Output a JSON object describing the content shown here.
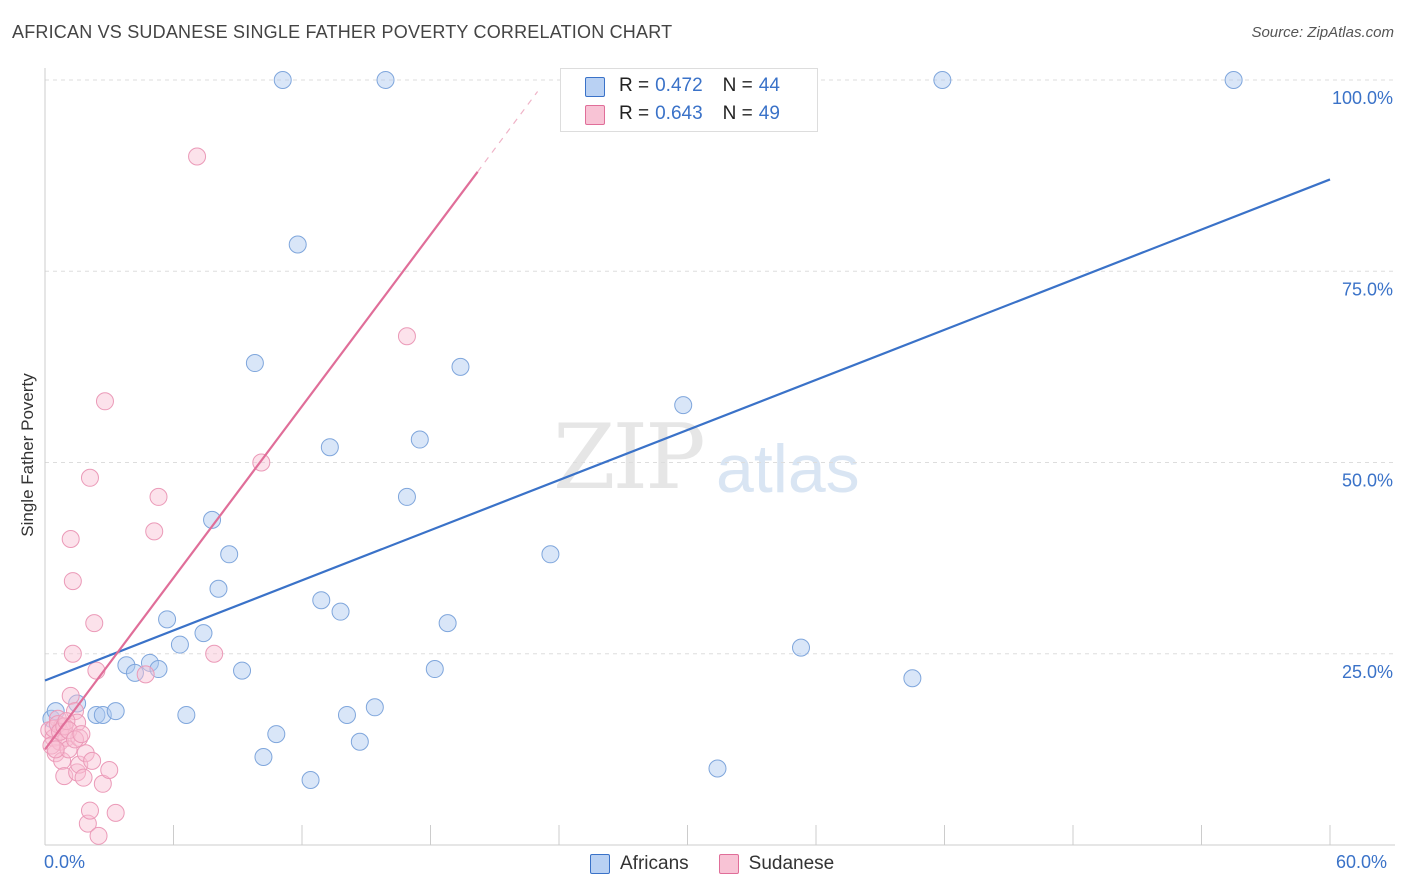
{
  "title": "AFRICAN VS SUDANESE SINGLE FATHER POVERTY CORRELATION CHART",
  "source": "Source: ZipAtlas.com",
  "watermark": {
    "main": "ZIP",
    "sub": "atlas"
  },
  "colors": {
    "blue": "#3a72c8",
    "blue_fill": "#b9d1f3",
    "pink": "#e06e99",
    "pink_fill": "#f8c3d5"
  },
  "stats": [
    {
      "r_label": "R = ",
      "r_value": "0.472",
      "n_label": "N = ",
      "n_value": "44"
    },
    {
      "r_label": "R = ",
      "r_value": "0.643",
      "n_label": "N = ",
      "n_value": "49"
    }
  ],
  "legend": [
    "Africans",
    "Sudanese"
  ],
  "chart_data": {
    "type": "scatter",
    "title": "AFRICAN VS SUDANESE SINGLE FATHER POVERTY CORRELATION CHART",
    "xlabel": "",
    "ylabel": "Single Father Poverty",
    "xlim": [
      0,
      60
    ],
    "ylim": [
      0,
      100
    ],
    "x_tick_labels": [
      "0.0%",
      "60.0%"
    ],
    "y_ticks": [
      25,
      50,
      75,
      100
    ],
    "y_tick_labels": [
      "25.0%",
      "50.0%",
      "75.0%",
      "100.0%"
    ],
    "grid": true,
    "series": [
      {
        "name": "Africans",
        "points": [
          [
            0.3,
            16.5
          ],
          [
            0.5,
            17.5
          ],
          [
            1.5,
            18.5
          ],
          [
            2.4,
            17.0
          ],
          [
            2.7,
            17.0
          ],
          [
            3.3,
            17.5
          ],
          [
            3.8,
            23.5
          ],
          [
            4.2,
            22.5
          ],
          [
            4.9,
            23.8
          ],
          [
            5.3,
            23.0
          ],
          [
            5.7,
            29.5
          ],
          [
            6.3,
            26.2
          ],
          [
            6.6,
            17.0
          ],
          [
            7.4,
            27.7
          ],
          [
            7.8,
            42.5
          ],
          [
            8.6,
            38.0
          ],
          [
            8.1,
            33.5
          ],
          [
            9.2,
            22.8
          ],
          [
            9.8,
            63.0
          ],
          [
            10.2,
            11.5
          ],
          [
            10.8,
            14.5
          ],
          [
            11.1,
            100.0
          ],
          [
            11.8,
            78.5
          ],
          [
            12.4,
            8.5
          ],
          [
            12.9,
            32.0
          ],
          [
            13.3,
            52.0
          ],
          [
            13.8,
            30.5
          ],
          [
            14.1,
            17.0
          ],
          [
            14.7,
            13.5
          ],
          [
            15.4,
            18.0
          ],
          [
            15.9,
            100.0
          ],
          [
            16.9,
            45.5
          ],
          [
            17.5,
            53.0
          ],
          [
            18.2,
            23.0
          ],
          [
            18.8,
            29.0
          ],
          [
            19.4,
            62.5
          ],
          [
            23.6,
            38.0
          ],
          [
            26.1,
            100.0
          ],
          [
            31.4,
            10.0
          ],
          [
            35.3,
            25.8
          ],
          [
            40.5,
            21.8
          ],
          [
            41.9,
            100.0
          ],
          [
            55.5,
            100.0
          ],
          [
            29.8,
            57.5
          ]
        ],
        "trend": {
          "x": [
            0,
            60
          ],
          "y": [
            21.5,
            87.0
          ]
        }
      },
      {
        "name": "Sudanese",
        "points": [
          [
            0.2,
            15.0
          ],
          [
            0.4,
            14.0
          ],
          [
            0.5,
            12.0
          ],
          [
            0.6,
            16.5
          ],
          [
            0.7,
            13.5
          ],
          [
            0.8,
            11.0
          ],
          [
            0.8,
            15.5
          ],
          [
            0.9,
            9.0
          ],
          [
            1.0,
            14.0
          ],
          [
            1.1,
            12.5
          ],
          [
            1.2,
            19.5
          ],
          [
            1.2,
            40.0
          ],
          [
            1.3,
            25.0
          ],
          [
            1.3,
            34.5
          ],
          [
            1.4,
            17.5
          ],
          [
            1.5,
            9.5
          ],
          [
            1.5,
            16.0
          ],
          [
            1.6,
            10.5
          ],
          [
            1.6,
            14.0
          ],
          [
            1.8,
            8.8
          ],
          [
            1.9,
            12.0
          ],
          [
            2.0,
            2.8
          ],
          [
            2.1,
            4.5
          ],
          [
            2.1,
            48.0
          ],
          [
            2.2,
            11.0
          ],
          [
            2.3,
            29.0
          ],
          [
            2.4,
            22.8
          ],
          [
            2.5,
            1.2
          ],
          [
            2.7,
            8.0
          ],
          [
            2.8,
            58.0
          ],
          [
            3.0,
            9.8
          ],
          [
            3.3,
            4.2
          ],
          [
            4.7,
            22.3
          ],
          [
            5.1,
            41.0
          ],
          [
            5.3,
            45.5
          ],
          [
            7.1,
            90.0
          ],
          [
            7.9,
            25.0
          ],
          [
            10.1,
            50.0
          ],
          [
            16.9,
            66.5
          ],
          [
            0.4,
            15.2
          ],
          [
            0.6,
            15.8
          ],
          [
            0.7,
            14.8
          ],
          [
            0.9,
            15.5
          ],
          [
            1.0,
            16.2
          ],
          [
            1.1,
            15.0
          ],
          [
            0.3,
            13.0
          ],
          [
            0.5,
            12.5
          ],
          [
            1.4,
            13.8
          ],
          [
            1.7,
            14.5
          ]
        ],
        "trend": {
          "x": [
            0,
            20.2
          ],
          "y": [
            12.5,
            88.0
          ]
        },
        "trend_extension": {
          "x": [
            20.2,
            23.0
          ],
          "y": [
            88.0,
            98.5
          ]
        }
      }
    ]
  }
}
